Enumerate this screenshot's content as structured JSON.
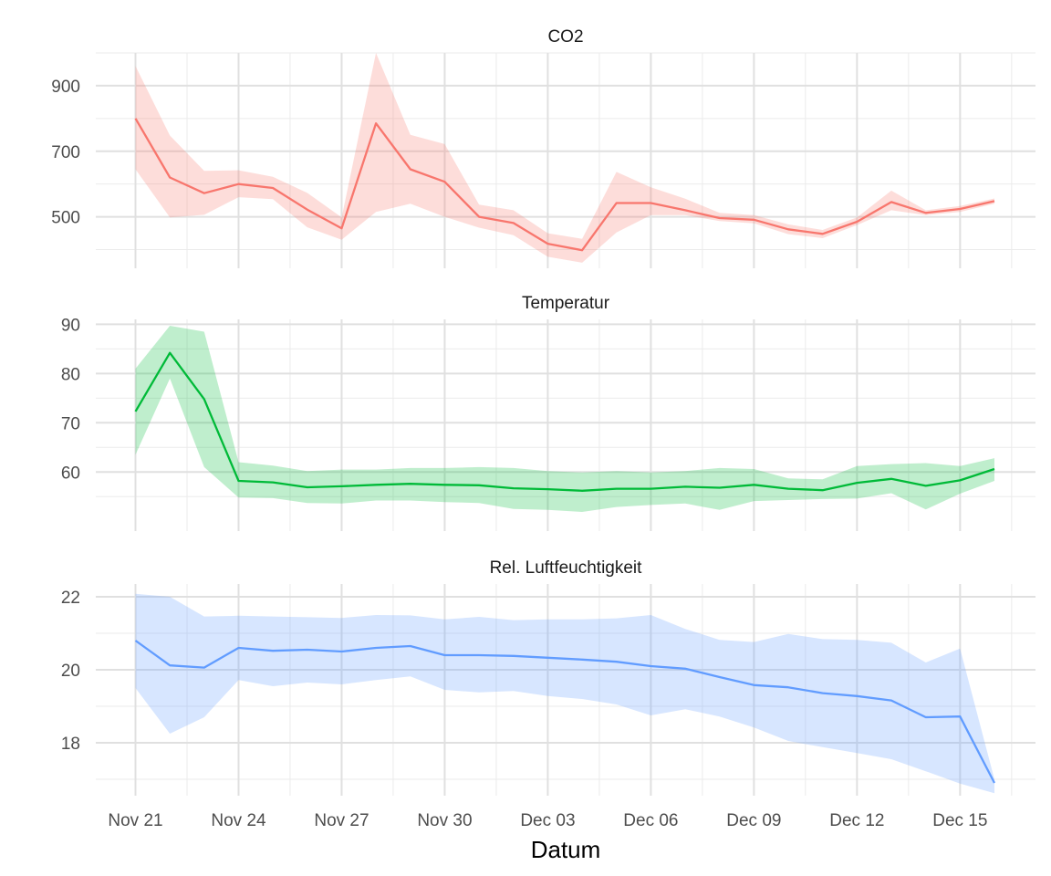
{
  "chart_data": {
    "type": "line",
    "xlabel": "Datum",
    "x_tick_labels": [
      "Nov 21",
      "Nov 24",
      "Nov 27",
      "Nov 30",
      "Dec 03",
      "Dec 06",
      "Dec 09",
      "Dec 12",
      "Dec 15"
    ],
    "dates": [
      "Nov 21",
      "Nov 22",
      "Nov 23",
      "Nov 24",
      "Nov 25",
      "Nov 26",
      "Nov 27",
      "Nov 28",
      "Nov 29",
      "Nov 30",
      "Dec 01",
      "Dec 02",
      "Dec 03",
      "Dec 04",
      "Dec 05",
      "Dec 06",
      "Dec 07",
      "Dec 08",
      "Dec 09",
      "Dec 10",
      "Dec 11",
      "Dec 12",
      "Dec 13",
      "Dec 14",
      "Dec 15",
      "Dec 16"
    ],
    "panels": [
      {
        "title": "CO2",
        "color": "#F8766D",
        "ylim": [
          343,
          1000
        ],
        "yticks": [
          500,
          700,
          900
        ],
        "mean": [
          800,
          620,
          572,
          600,
          588,
          522,
          465,
          785,
          645,
          607,
          500,
          481,
          418,
          398,
          542,
          542,
          520,
          496,
          491,
          462,
          448,
          485,
          545,
          512,
          524,
          548
        ],
        "lower": [
          645,
          498,
          506,
          560,
          554,
          468,
          430,
          515,
          540,
          500,
          467,
          444,
          378,
          360,
          452,
          505,
          505,
          487,
          480,
          447,
          435,
          475,
          520,
          505,
          515,
          540
        ],
        "upper": [
          960,
          748,
          640,
          642,
          622,
          573,
          498,
          1000,
          750,
          722,
          537,
          520,
          450,
          433,
          637,
          590,
          555,
          512,
          505,
          477,
          460,
          498,
          580,
          520,
          533,
          556
        ]
      },
      {
        "title": "Temperatur",
        "color": "#00BA38",
        "ylim": [
          48,
          91
        ],
        "yticks": [
          60,
          70,
          80,
          90
        ],
        "mean": [
          72.3,
          84.2,
          74.8,
          58.2,
          57.9,
          56.9,
          57.1,
          57.4,
          57.6,
          57.4,
          57.3,
          56.7,
          56.5,
          56.2,
          56.6,
          56.6,
          57.0,
          56.8,
          57.4,
          56.6,
          56.3,
          57.8,
          58.6,
          57.2,
          58.3,
          60.6
        ],
        "lower": [
          63.5,
          79.0,
          61.0,
          54.8,
          54.7,
          53.7,
          53.6,
          54.2,
          54.2,
          53.9,
          53.7,
          52.5,
          52.3,
          51.9,
          52.9,
          53.3,
          53.6,
          52.3,
          54.1,
          54.3,
          54.5,
          54.6,
          55.7,
          52.4,
          55.6,
          58.2
        ],
        "upper": [
          81.0,
          89.7,
          88.5,
          62.0,
          61.3,
          60.2,
          60.5,
          60.5,
          60.8,
          60.8,
          61.0,
          60.8,
          60.2,
          59.9,
          60.2,
          59.9,
          60.2,
          60.8,
          60.6,
          58.7,
          58.5,
          61.2,
          61.6,
          61.8,
          61.2,
          62.8
        ]
      },
      {
        "title": "Rel. Luftfeuchtigkeit",
        "color": "#619CFF",
        "ylim": [
          16.55,
          22.35
        ],
        "yticks": [
          18,
          20,
          22
        ],
        "mean": [
          20.8,
          20.12,
          20.06,
          20.6,
          20.52,
          20.55,
          20.5,
          20.6,
          20.65,
          20.4,
          20.4,
          20.38,
          20.33,
          20.28,
          20.22,
          20.1,
          20.03,
          19.8,
          19.58,
          19.52,
          19.36,
          19.28,
          19.16,
          18.7,
          18.72,
          16.9
        ],
        "lower": [
          19.5,
          18.25,
          18.7,
          19.72,
          19.55,
          19.65,
          19.6,
          19.72,
          19.82,
          19.45,
          19.38,
          19.42,
          19.28,
          19.2,
          19.05,
          18.75,
          18.92,
          18.72,
          18.42,
          18.05,
          17.88,
          17.72,
          17.55,
          17.22,
          16.88,
          16.62
        ],
        "upper": [
          22.08,
          22.0,
          21.46,
          21.48,
          21.46,
          21.44,
          21.42,
          21.5,
          21.49,
          21.38,
          21.45,
          21.36,
          21.38,
          21.38,
          21.41,
          21.5,
          21.12,
          20.82,
          20.76,
          20.98,
          20.84,
          20.82,
          20.74,
          20.2,
          20.58,
          17.0
        ]
      }
    ]
  }
}
